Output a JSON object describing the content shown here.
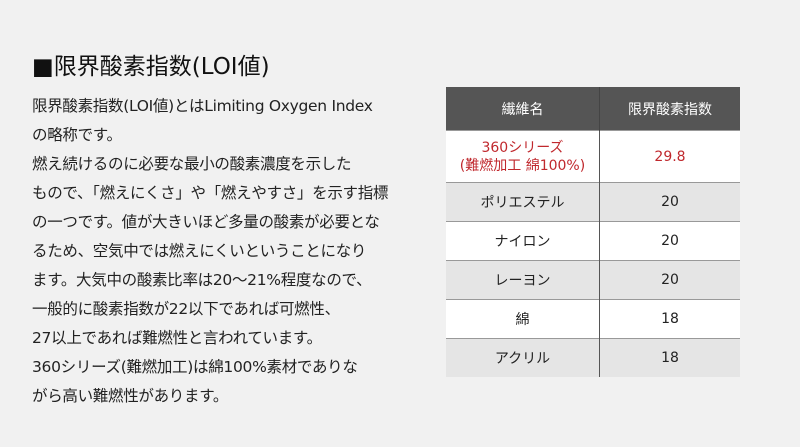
{
  "title": "■限界酸素指数(LOI値)",
  "body_lines": [
    "限界酸素指数(LOI値)とはLimiting Oxygen Index",
    "の略称です。",
    "燃え続けるのに必要な最小の酸素濃度を示した",
    "もので、「燃えにくさ」や「燃えやすさ」を示す指標",
    "の一つです。値が大きいほど多量の酸素が必要とな",
    "るため、空気中では燃えにくいということになり",
    "ます。大気中の酸素比率は20〜21%程度なので、",
    "一般的に酸素指数が22以下であれば可燃性、",
    "27以上であれば難燃性と言われています。",
    "360シリーズ(難燃加工)は綿100%素材でありな",
    "がら高い難燃性があります。"
  ],
  "table": {
    "headers": [
      "繊維名",
      "限界酸素指数"
    ],
    "highlight_color": "#c0282d",
    "rows": [
      {
        "name_line1": "360シリーズ",
        "name_line2": "(難燃加工 綿100%)",
        "value": "29.8"
      },
      {
        "name": "ポリエステル",
        "value": "20"
      },
      {
        "name": "ナイロン",
        "value": "20"
      },
      {
        "name": "レーヨン",
        "value": "20"
      },
      {
        "name": "綿",
        "value": "18"
      },
      {
        "name": "アクリル",
        "value": "18"
      }
    ]
  }
}
